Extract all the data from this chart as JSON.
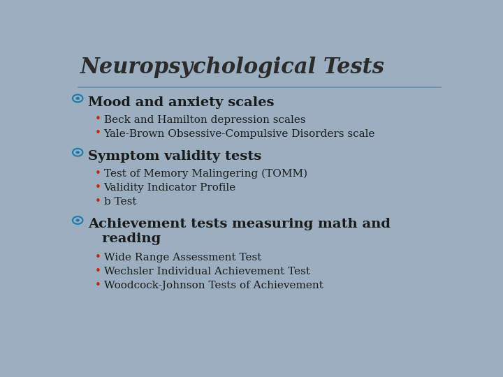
{
  "title": "Neuropsychological Tests",
  "background_color": "#9BAFC0",
  "title_color": "#2B2B2B",
  "title_fontsize": 22,
  "separator_color": "#6A8EA0",
  "bullet_color": "#1A7AAA",
  "sub_bullet_color": "#CC2200",
  "sections": [
    {
      "header": "Mood and anxiety scales",
      "items": [
        "Beck and Hamilton depression scales",
        "Yale-Brown Obsessive-Compulsive Disorders scale"
      ]
    },
    {
      "header": "Symptom validity tests",
      "items": [
        "Test of Memory Malingering (TOMM)",
        "Validity Indicator Profile",
        "b Test"
      ]
    },
    {
      "header": "Achievement tests measuring math and\n   reading",
      "items": [
        "Wide Range Assessment Test",
        "Wechsler Individual Achievement Test",
        "Woodcock-Johnson Tests of Achievement"
      ]
    }
  ],
  "header_fontsize": 14,
  "item_fontsize": 11,
  "text_color": "#1A1A1A",
  "rounded_corner_bg": "#8FA4B5",
  "border_color": "#7090A0"
}
